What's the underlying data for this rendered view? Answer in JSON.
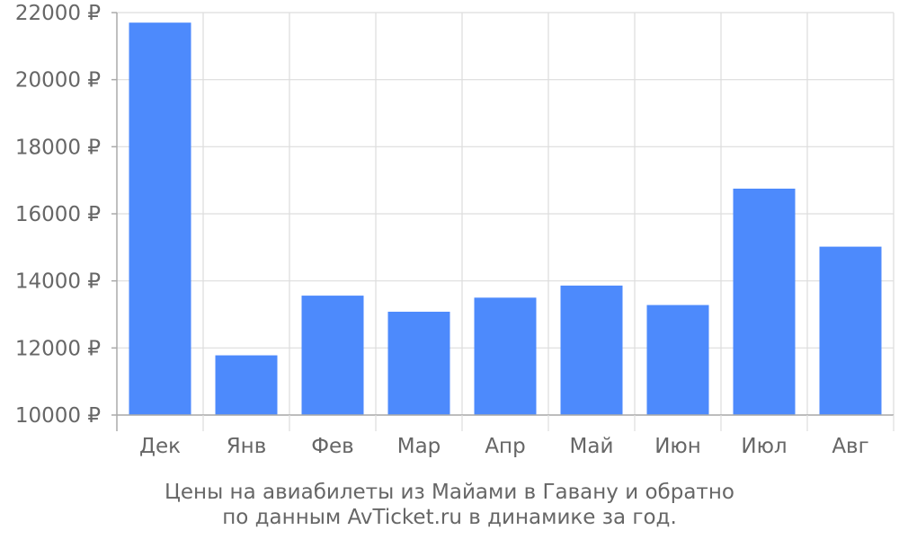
{
  "chart_data": {
    "type": "bar",
    "categories": [
      "Дек",
      "Янв",
      "Фев",
      "Мар",
      "Апр",
      "Май",
      "Июн",
      "Июл",
      "Авг"
    ],
    "values": [
      21700,
      11780,
      13560,
      13080,
      13500,
      13860,
      13280,
      16750,
      15020
    ],
    "y_ticks": [
      10000,
      12000,
      14000,
      16000,
      18000,
      20000,
      22000
    ],
    "y_tick_suffix": " ₽",
    "ylim": [
      10000,
      22000
    ],
    "grid": true,
    "bar_color": "#4d8afc",
    "caption": [
      "Цены на авиабилеты из Майами в Гавану и обратно",
      "по данным AvTicket.ru в динамике за год."
    ]
  }
}
